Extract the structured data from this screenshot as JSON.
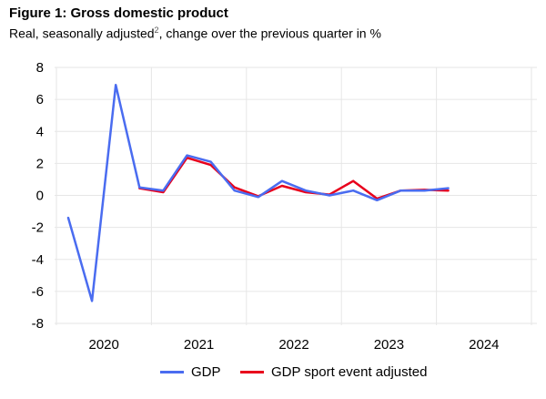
{
  "header": {
    "title": "Figure 1: Gross domestic product",
    "subtitle_main": "Real, seasonally adjusted",
    "subtitle_sup": "2",
    "subtitle_rest": ", change over the previous quarter in %"
  },
  "chart_data": {
    "type": "line",
    "title": "Figure 1: Gross domestic product",
    "subtitle": "Real, seasonally adjusted, change over the previous quarter in %",
    "xlabel": "",
    "ylabel": "",
    "ylim": [
      -8,
      8
    ],
    "yticks": [
      8,
      6,
      4,
      2,
      0,
      -2,
      -4,
      -6,
      -8
    ],
    "ytick_labels": [
      "8",
      "6",
      "4",
      "2",
      "0",
      "-2",
      "-4",
      "-6",
      "-8"
    ],
    "year_labels": [
      "2020",
      "2021",
      "2022",
      "2023",
      "2024"
    ],
    "quarters_per_year": 4,
    "grid": true,
    "legend_position": "bottom",
    "series": [
      {
        "name": "GDP",
        "color": "#4a6cf0",
        "values": [
          -1.4,
          -6.6,
          6.9,
          0.5,
          0.3,
          2.5,
          2.1,
          0.3,
          -0.1,
          0.9,
          0.3,
          0.0,
          0.3,
          -0.3,
          0.3,
          0.3,
          0.45
        ]
      },
      {
        "name": "GDP sport event adjusted",
        "color": "#e8001c",
        "values": [
          null,
          null,
          null,
          0.45,
          0.2,
          2.35,
          1.9,
          0.5,
          -0.05,
          0.6,
          0.2,
          0.05,
          0.9,
          -0.2,
          0.3,
          0.35,
          0.3
        ]
      }
    ]
  }
}
